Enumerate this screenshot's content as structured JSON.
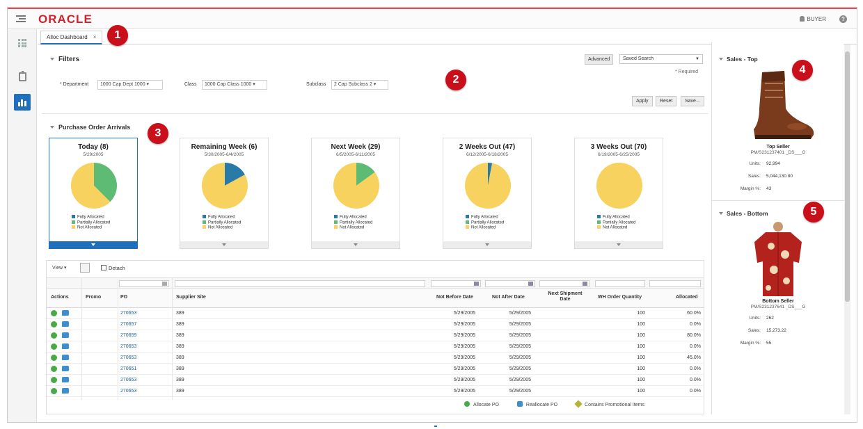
{
  "brand": {
    "logo_text": "ORACLE",
    "accent": "#d4202c",
    "primary": "#1f6fbd"
  },
  "header": {
    "user_label": "BUYER",
    "help_glyph": "?"
  },
  "tabs": [
    {
      "label": "Alloc Dashboard",
      "close": "×"
    }
  ],
  "callouts": [
    "1",
    "2",
    "3",
    "4",
    "5"
  ],
  "filters": {
    "title": "Filters",
    "advanced_label": "Advanced",
    "saved_search_label": "Saved Search",
    "required_note": "* Required",
    "department_label": "* Department",
    "department_value": "1000 Cap Dept 1000",
    "class_label": "Class",
    "class_value": "1000 Cap Class 1000",
    "subclass_label": "Subclass",
    "subclass_value": "2 Cap Subclass 2",
    "apply_label": "Apply",
    "reset_label": "Reset",
    "save_label": "Save..."
  },
  "po_arrivals": {
    "title": "Purchase Order Arrivals",
    "legend": [
      "Fully Allocated",
      "Partially Allocated",
      "Not Allocated"
    ],
    "colors": {
      "fully": "#2a7aa8",
      "partial": "#5dbb74",
      "not": "#f7d25e"
    },
    "cards": [
      {
        "title": "Today (8)",
        "date": "5/29/2005",
        "fully": 0,
        "partial": 0.375,
        "not": 0.625
      },
      {
        "title": "Remaining Week (6)",
        "date": "5/30/2005-6/4/2005",
        "fully": 0.17,
        "partial": 0,
        "not": 0.83
      },
      {
        "title": "Next Week (29)",
        "date": "6/5/2005-6/11/2005",
        "fully": 0,
        "partial": 0.15,
        "not": 0.85
      },
      {
        "title": "2 Weeks Out (47)",
        "date": "6/12/2005-6/18/2005",
        "fully": 0.03,
        "partial": 0,
        "not": 0.97
      },
      {
        "title": "3 Weeks Out (70)",
        "date": "6/19/2005-6/25/2005",
        "fully": 0,
        "partial": 0,
        "not": 1
      }
    ]
  },
  "table": {
    "view_label": "View ▾",
    "detach_label": "Detach",
    "columns": {
      "actions": "Actions",
      "promo": "Promo",
      "po": "PO",
      "supplier": "Supplier Site",
      "nbd": "Not Before Date",
      "nad": "Not After Date",
      "nsd": "Next Shipment Date",
      "whq": "WH Order Quantity",
      "alloc": "Allocated"
    },
    "rows": [
      {
        "po": "270653",
        "supplier": "389",
        "nbd": "5/29/2005",
        "nad": "5/29/2005",
        "whq": "100",
        "alloc": "60.0%"
      },
      {
        "po": "270657",
        "supplier": "389",
        "nbd": "5/29/2005",
        "nad": "5/29/2005",
        "whq": "100",
        "alloc": "0.0%"
      },
      {
        "po": "270659",
        "supplier": "389",
        "nbd": "5/29/2005",
        "nad": "5/29/2005",
        "whq": "100",
        "alloc": "80.0%"
      },
      {
        "po": "270653",
        "supplier": "389",
        "nbd": "5/29/2005",
        "nad": "5/29/2005",
        "whq": "100",
        "alloc": "0.0%"
      },
      {
        "po": "270653",
        "supplier": "389",
        "nbd": "5/29/2005",
        "nad": "5/29/2005",
        "whq": "100",
        "alloc": "45.0%"
      },
      {
        "po": "270651",
        "supplier": "389",
        "nbd": "5/29/2005",
        "nad": "5/29/2005",
        "whq": "100",
        "alloc": "0.0%"
      },
      {
        "po": "270653",
        "supplier": "389",
        "nbd": "5/29/2005",
        "nad": "5/29/2005",
        "whq": "100",
        "alloc": "0.0%"
      },
      {
        "po": "270653",
        "supplier": "389",
        "nbd": "5/29/2005",
        "nad": "5/29/2005",
        "whq": "100",
        "alloc": "0.0%"
      }
    ],
    "legend": {
      "allocate": "Allocate PO",
      "reallocate": "Reallocate PO",
      "promo": "Contains Promotional Items"
    }
  },
  "sales_top": {
    "title": "Sales - Top",
    "name": "Top Seller",
    "sku": "PM/S231237401 _DS___G",
    "units_label": "Units:",
    "units": "92,994",
    "sales_label": "Sales:",
    "sales": "5,044,130.80",
    "margin_label": "Margin %:",
    "margin": "43"
  },
  "sales_bottom": {
    "title": "Sales - Bottom",
    "name": "Bottom Seller",
    "sku": "PM/S231237641 _DS___G",
    "units_label": "Units:",
    "units": "262",
    "sales_label": "Sales:",
    "sales": "15,273.22",
    "margin_label": "Margin %:",
    "margin": "55"
  }
}
